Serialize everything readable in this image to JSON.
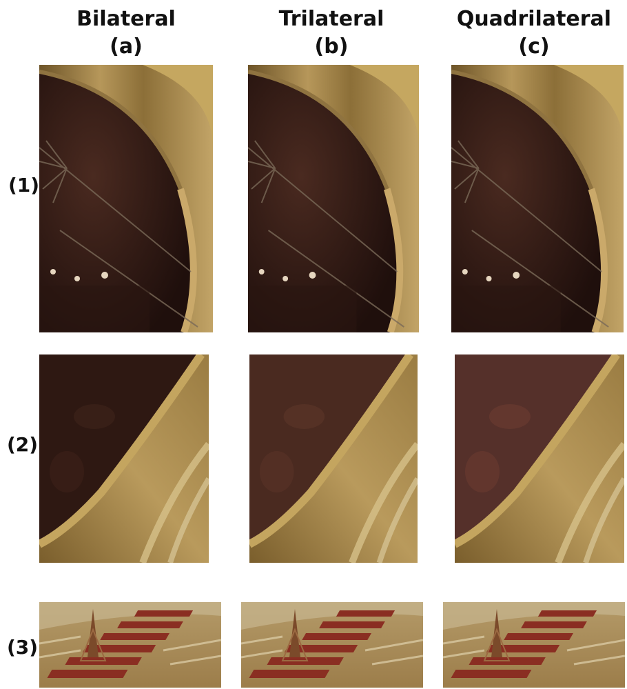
{
  "columns": [
    {
      "title": "Bilateral",
      "letter": "(a)"
    },
    {
      "title": "Trilateral",
      "letter": "(b)"
    },
    {
      "title": "Quadrilateral",
      "letter": "(c)"
    }
  ],
  "rows": [
    {
      "label": "(1)"
    },
    {
      "label": "(2)"
    },
    {
      "label": "(3)"
    }
  ],
  "panel_content": {
    "row1": "dark arched window with gilded curved frame",
    "row2": "dark interior panel with diagonal golden molding",
    "row3": "red carpeted staircase with fountain"
  },
  "colors": {
    "gold": "#a98b4d",
    "dark_brown": "#2c1712",
    "red_carpet": "#8a2e22",
    "cream": "#c8b690"
  }
}
